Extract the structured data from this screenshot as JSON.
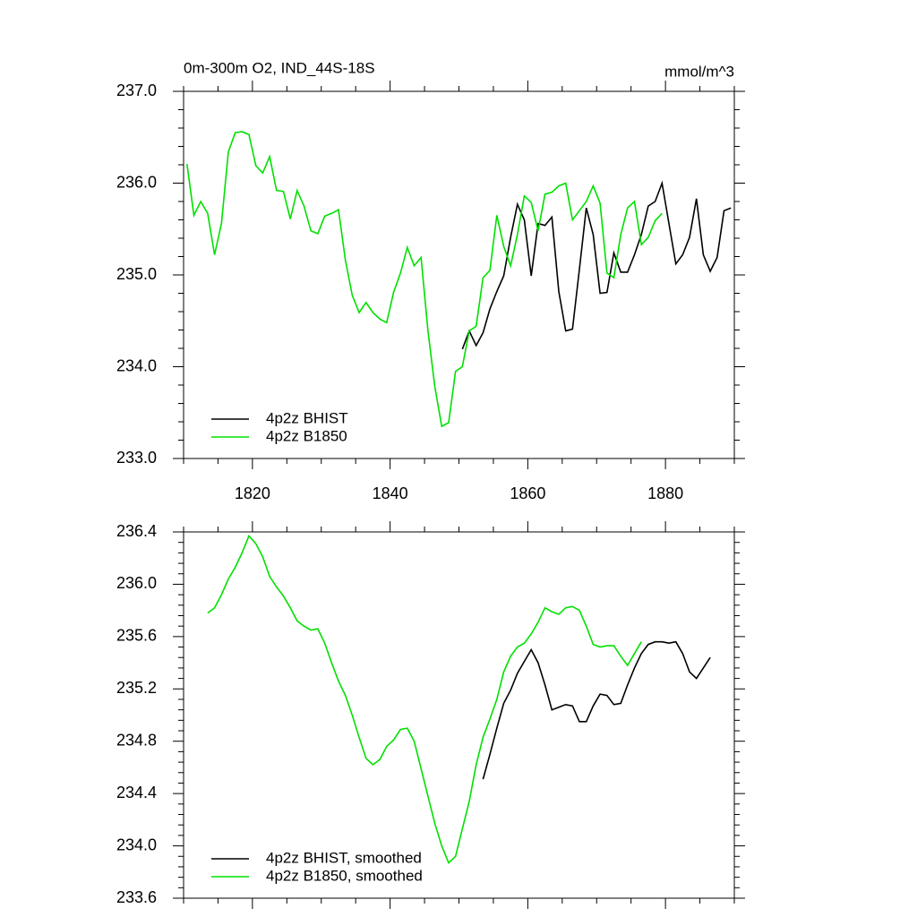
{
  "chart_data": [
    {
      "type": "line",
      "title": "0m-300m O2, IND_44S-18S",
      "units": "mmol/m^3",
      "xlim": [
        1810,
        1890
      ],
      "xticks": [
        1820,
        1840,
        1860,
        1880
      ],
      "xtick_labels": true,
      "ylim": [
        233,
        237
      ],
      "yticks": [
        {
          "value": 233,
          "label": "233.0"
        },
        {
          "value": 234,
          "label": "234.0"
        },
        {
          "value": 235,
          "label": "235.0"
        },
        {
          "value": 236,
          "label": "236.0"
        },
        {
          "value": 237,
          "label": "237.0"
        }
      ],
      "legend": "lower left",
      "series": [
        {
          "name": "4p2z BHIST",
          "color": "#000000",
          "x": [
            1850.5,
            1851.5,
            1852.5,
            1853.5,
            1854.5,
            1855.5,
            1856.5,
            1857.5,
            1858.5,
            1859.5,
            1860.5,
            1861.5,
            1862.5,
            1863.5,
            1864.5,
            1865.5,
            1866.5,
            1867.5,
            1868.5,
            1869.5,
            1870.5,
            1871.5,
            1872.5,
            1873.5,
            1874.5,
            1875.5,
            1876.5,
            1877.5,
            1878.5,
            1879.5,
            1880.5,
            1881.5,
            1882.5,
            1883.5,
            1884.5,
            1885.5,
            1886.5,
            1887.5,
            1888.5,
            1889.5
          ],
          "values": [
            234.19,
            234.39,
            234.23,
            234.37,
            234.63,
            234.82,
            234.99,
            235.41,
            235.77,
            235.6,
            234.99,
            235.56,
            235.54,
            235.63,
            234.82,
            234.39,
            234.41,
            235.06,
            235.73,
            235.44,
            234.8,
            234.81,
            235.24,
            235.03,
            235.03,
            235.22,
            235.44,
            235.75,
            235.8,
            236.0,
            235.56,
            235.12,
            235.22,
            235.41,
            235.83,
            235.22,
            235.04,
            235.19,
            235.7,
            235.73
          ]
        },
        {
          "name": "4p2z B1850",
          "color": "#00e000",
          "x": [
            1810.5,
            1811.5,
            1812.5,
            1813.5,
            1814.5,
            1815.5,
            1816.5,
            1817.5,
            1818.5,
            1819.5,
            1820.5,
            1821.5,
            1822.5,
            1823.5,
            1824.5,
            1825.5,
            1826.5,
            1827.5,
            1828.5,
            1829.5,
            1830.5,
            1831.5,
            1832.5,
            1833.5,
            1834.5,
            1835.5,
            1836.5,
            1837.5,
            1838.5,
            1839.5,
            1840.5,
            1841.5,
            1842.5,
            1843.5,
            1844.5,
            1845.5,
            1846.5,
            1847.5,
            1848.5,
            1849.5,
            1850.5,
            1851.5,
            1852.5,
            1853.5,
            1854.5,
            1855.5,
            1856.5,
            1857.5,
            1858.5,
            1859.5,
            1860.5,
            1861.5,
            1862.5,
            1863.5,
            1864.5,
            1865.5,
            1866.5,
            1867.5,
            1868.5,
            1869.5,
            1870.5,
            1871.5,
            1872.5,
            1873.5,
            1874.5,
            1875.5,
            1876.5,
            1877.5,
            1878.5,
            1879.5
          ],
          "values": [
            236.21,
            235.65,
            235.8,
            235.67,
            235.22,
            235.56,
            236.34,
            236.55,
            236.56,
            236.53,
            236.19,
            236.11,
            236.29,
            235.92,
            235.91,
            235.61,
            235.92,
            235.75,
            235.48,
            235.45,
            235.64,
            235.67,
            235.71,
            235.16,
            234.78,
            234.59,
            234.7,
            234.59,
            234.52,
            234.48,
            234.81,
            235.02,
            235.3,
            235.1,
            235.19,
            234.39,
            233.78,
            233.35,
            233.39,
            233.95,
            234.0,
            234.39,
            234.44,
            234.97,
            235.05,
            235.65,
            235.31,
            235.1,
            235.44,
            235.86,
            235.79,
            235.48,
            235.88,
            235.9,
            235.97,
            236.0,
            235.6,
            235.7,
            235.8,
            235.97,
            235.78,
            235.02,
            234.97,
            235.44,
            235.73,
            235.8,
            235.33,
            235.41,
            235.59,
            235.67
          ]
        }
      ]
    },
    {
      "type": "line",
      "xlim": [
        1810,
        1890
      ],
      "xticks": [
        1820,
        1840,
        1860,
        1880
      ],
      "xtick_labels": false,
      "ylim": [
        233.6,
        236.4
      ],
      "yticks": [
        233.6,
        {
          "value": 234,
          "label": "234.0"
        },
        234.4,
        234.8,
        235.2,
        235.6,
        {
          "value": 236,
          "label": "236.0"
        },
        236.4
      ],
      "legend": "lower left",
      "series": [
        {
          "name": "4p2z BHIST, smoothed",
          "color": "#000000",
          "x": [
            1853.5,
            1854.5,
            1855.5,
            1856.5,
            1857.5,
            1858.5,
            1859.5,
            1860.5,
            1861.5,
            1862.5,
            1863.5,
            1864.5,
            1865.5,
            1866.5,
            1867.5,
            1868.5,
            1869.5,
            1870.5,
            1871.5,
            1872.5,
            1873.5,
            1874.5,
            1875.5,
            1876.5,
            1877.5,
            1878.5,
            1879.5,
            1880.5,
            1881.5,
            1882.5,
            1883.5,
            1884.5,
            1885.5,
            1886.5
          ],
          "values": [
            234.51,
            234.7,
            234.9,
            235.09,
            235.19,
            235.32,
            235.41,
            235.5,
            235.4,
            235.23,
            235.04,
            235.06,
            235.08,
            235.07,
            234.95,
            234.95,
            235.07,
            235.16,
            235.15,
            235.08,
            235.09,
            235.23,
            235.36,
            235.47,
            235.54,
            235.56,
            235.56,
            235.55,
            235.56,
            235.47,
            235.33,
            235.28,
            235.36,
            235.44
          ]
        },
        {
          "name": "4p2z B1850, smoothed",
          "color": "#00e000",
          "x": [
            1813.5,
            1814.5,
            1815.5,
            1816.5,
            1817.5,
            1818.5,
            1819.5,
            1820.5,
            1821.5,
            1822.5,
            1823.5,
            1824.5,
            1825.5,
            1826.5,
            1827.5,
            1828.5,
            1829.5,
            1830.5,
            1831.5,
            1832.5,
            1833.5,
            1834.5,
            1835.5,
            1836.5,
            1837.5,
            1838.5,
            1839.5,
            1840.5,
            1841.5,
            1842.5,
            1843.5,
            1844.5,
            1845.5,
            1846.5,
            1847.5,
            1848.5,
            1849.5,
            1850.5,
            1851.5,
            1852.5,
            1853.5,
            1854.5,
            1855.5,
            1856.5,
            1857.5,
            1858.5,
            1859.5,
            1860.5,
            1861.5,
            1862.5,
            1863.5,
            1864.5,
            1865.5,
            1866.5,
            1867.5,
            1868.5,
            1869.5,
            1870.5,
            1871.5,
            1872.5,
            1873.5,
            1874.5,
            1875.5,
            1876.5
          ],
          "values": [
            235.78,
            235.82,
            235.92,
            236.04,
            236.13,
            236.24,
            236.37,
            236.31,
            236.21,
            236.06,
            235.98,
            235.91,
            235.82,
            235.72,
            235.68,
            235.65,
            235.66,
            235.55,
            235.4,
            235.26,
            235.15,
            235.0,
            234.83,
            234.67,
            234.62,
            234.66,
            234.76,
            234.81,
            234.89,
            234.9,
            234.8,
            234.59,
            234.38,
            234.17,
            234.0,
            233.87,
            233.92,
            234.13,
            234.34,
            234.62,
            234.83,
            234.97,
            235.12,
            235.33,
            235.45,
            235.52,
            235.55,
            235.62,
            235.71,
            235.82,
            235.79,
            235.77,
            235.82,
            235.83,
            235.8,
            235.68,
            235.54,
            235.52,
            235.53,
            235.53,
            235.45,
            235.38,
            235.47,
            235.56
          ]
        }
      ]
    }
  ]
}
